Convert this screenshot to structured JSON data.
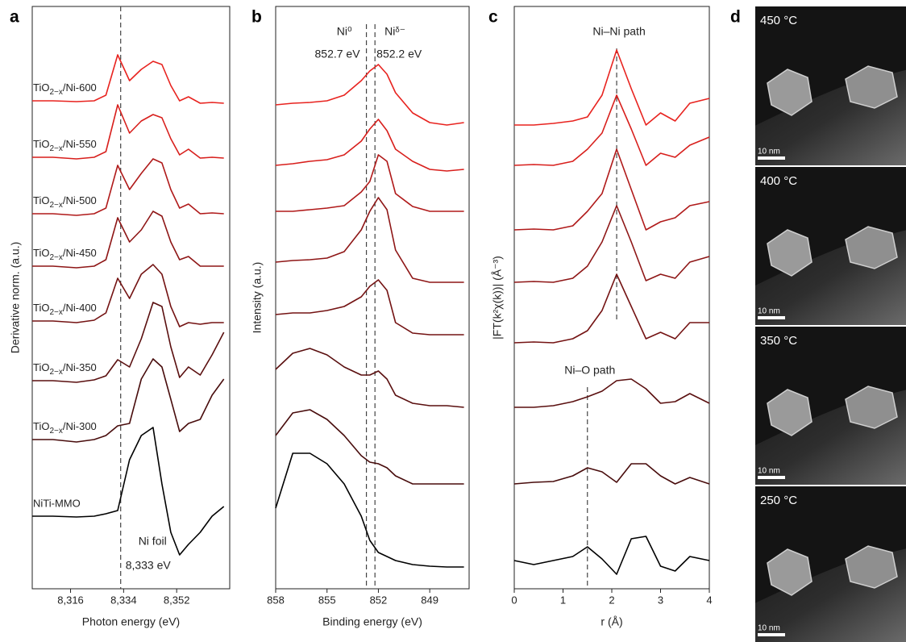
{
  "panel_labels": [
    "a",
    "b",
    "c",
    "d"
  ],
  "chart_data": [
    {
      "type": "line",
      "x_label": "Photon energy (eV)",
      "y_label": "Derivative norm. (a.u.)",
      "x": [
        8303,
        8310,
        8318,
        8324,
        8328,
        8332,
        8336,
        8340,
        8344,
        8347,
        8350,
        8353,
        8356,
        8360,
        8364,
        8368
      ],
      "xlim": [
        8303,
        8370
      ],
      "ylim": [
        0,
        722
      ],
      "xticks": [
        {
          "value": 8316,
          "label": "8,316"
        },
        {
          "value": 8334,
          "label": "8,334"
        },
        {
          "value": 8352,
          "label": "8,352"
        }
      ],
      "vlines": [
        {
          "value": 8333,
          "label": "8,333 eV"
        }
      ],
      "annotations": [
        "Ni foil"
      ],
      "series": [
        {
          "name": "TiO2−x/Ni-600",
          "color": "#e8231f",
          "values": [
            605,
            605,
            604,
            605,
            612,
            662,
            630,
            644,
            654,
            650,
            624,
            605,
            610,
            602,
            603,
            602
          ]
        },
        {
          "name": "TiO2−x/Ni-550",
          "color": "#d81f1c",
          "values": [
            535,
            535,
            533,
            535,
            542,
            600,
            565,
            580,
            588,
            584,
            558,
            538,
            545,
            534,
            535,
            534
          ]
        },
        {
          "name": "TiO2−x/Ni-500",
          "color": "#b01a1a",
          "values": [
            465,
            465,
            463,
            465,
            472,
            525,
            495,
            515,
            533,
            528,
            495,
            472,
            477,
            465,
            466,
            465
          ]
        },
        {
          "name": "TiO2−x/Ni-450",
          "color": "#8e1616",
          "values": [
            400,
            400,
            398,
            400,
            408,
            460,
            430,
            445,
            468,
            462,
            430,
            408,
            412,
            400,
            400,
            400
          ]
        },
        {
          "name": "TiO2−x/Ni-400",
          "color": "#741313",
          "values": [
            332,
            332,
            330,
            333,
            342,
            385,
            360,
            390,
            402,
            390,
            350,
            325,
            330,
            328,
            330,
            330
          ]
        },
        {
          "name": "TiO2−x/Ni-350",
          "color": "#5a0f0f",
          "values": [
            258,
            258,
            256,
            259,
            264,
            284,
            275,
            310,
            355,
            350,
            300,
            262,
            275,
            265,
            290,
            318
          ]
        },
        {
          "name": "TiO2−x/Ni-300",
          "color": "#480c0c",
          "values": [
            185,
            185,
            182,
            185,
            190,
            202,
            205,
            260,
            285,
            275,
            235,
            195,
            205,
            210,
            240,
            260
          ]
        },
        {
          "name": "NiTi-MMO",
          "color": "#000000",
          "values": [
            90,
            90,
            89,
            90,
            93,
            97,
            160,
            190,
            200,
            130,
            70,
            42,
            55,
            70,
            90,
            102
          ]
        }
      ]
    },
    {
      "type": "line",
      "x_label": "Binding energy (eV)",
      "y_label": "Intensity (a.u.)",
      "x": [
        858,
        857,
        856,
        855,
        854,
        853,
        852.5,
        852,
        851.5,
        851,
        850,
        849,
        848,
        847
      ],
      "xlim": [
        858,
        846.7
      ],
      "ylim": [
        0,
        722
      ],
      "xticks": [
        858,
        855,
        852,
        849
      ],
      "vlines": [
        {
          "value": 852.7,
          "label": "852.7 eV",
          "species": "Ni⁰"
        },
        {
          "value": 852.2,
          "label": "852.2 eV",
          "species": "Niᵟ⁻"
        }
      ],
      "series": [
        {
          "color": "#e8231f",
          "values": [
            600,
            602,
            603,
            605,
            612,
            630,
            642,
            650,
            638,
            615,
            590,
            578,
            575,
            578
          ]
        },
        {
          "color": "#d81f1c",
          "values": [
            525,
            527,
            530,
            532,
            538,
            555,
            570,
            582,
            568,
            545,
            530,
            520,
            518,
            520
          ]
        },
        {
          "color": "#b01a1a",
          "values": [
            468,
            468,
            470,
            472,
            475,
            492,
            505,
            538,
            530,
            490,
            474,
            468,
            468,
            468
          ]
        },
        {
          "color": "#8e1616",
          "values": [
            405,
            407,
            408,
            410,
            418,
            445,
            468,
            485,
            470,
            420,
            385,
            380,
            380,
            380
          ]
        },
        {
          "color": "#741313",
          "values": [
            340,
            342,
            342,
            345,
            350,
            362,
            375,
            383,
            370,
            330,
            317,
            315,
            315,
            315
          ]
        },
        {
          "color": "#5a0f0f",
          "values": [
            272,
            292,
            298,
            290,
            275,
            265,
            265,
            270,
            260,
            240,
            230,
            227,
            227,
            225
          ]
        },
        {
          "color": "#480c0c",
          "values": [
            190,
            218,
            222,
            210,
            190,
            165,
            157,
            155,
            150,
            140,
            130,
            130,
            130,
            130
          ]
        },
        {
          "color": "#000000",
          "values": [
            100,
            168,
            168,
            155,
            130,
            90,
            60,
            45,
            40,
            35,
            30,
            28,
            27,
            27
          ]
        }
      ]
    },
    {
      "type": "line",
      "x_label": "r (Å)",
      "y_label": "|FT(k²χ(k))| (Å⁻³)",
      "x": [
        0,
        0.4,
        0.8,
        1.2,
        1.5,
        1.8,
        2.1,
        2.4,
        2.7,
        3.0,
        3.3,
        3.6,
        4.0
      ],
      "xlim": [
        0,
        4
      ],
      "ylim": [
        0,
        722
      ],
      "xticks": [
        0,
        1,
        2,
        3,
        4
      ],
      "vlines": [
        {
          "value": 2.1,
          "label": "Ni–Ni path",
          "span": [
            330,
            670
          ]
        },
        {
          "value": 1.5,
          "label": "Ni–O path",
          "span": [
            0,
            250
          ]
        }
      ],
      "series": [
        {
          "color": "#e8231f",
          "values": [
            575,
            575,
            577,
            580,
            585,
            612,
            668,
            620,
            575,
            590,
            580,
            602,
            608
          ]
        },
        {
          "color": "#d81f1c",
          "values": [
            525,
            526,
            525,
            530,
            545,
            565,
            612,
            570,
            525,
            540,
            535,
            550,
            560
          ]
        },
        {
          "color": "#b01a1a",
          "values": [
            445,
            446,
            445,
            450,
            468,
            490,
            545,
            495,
            445,
            455,
            460,
            475,
            480
          ]
        },
        {
          "color": "#8e1616",
          "values": [
            380,
            381,
            380,
            385,
            400,
            430,
            475,
            430,
            382,
            390,
            385,
            405,
            412
          ]
        },
        {
          "color": "#741313",
          "values": [
            305,
            306,
            305,
            310,
            320,
            345,
            390,
            350,
            310,
            318,
            310,
            330,
            330
          ]
        },
        {
          "color": "#5a0f0f",
          "values": [
            225,
            225,
            227,
            232,
            238,
            245,
            258,
            260,
            248,
            230,
            232,
            242,
            230
          ]
        },
        {
          "color": "#480c0c",
          "values": [
            130,
            132,
            133,
            140,
            150,
            145,
            132,
            155,
            155,
            140,
            130,
            138,
            130
          ]
        },
        {
          "color": "#000000",
          "values": [
            35,
            30,
            35,
            40,
            52,
            37,
            18,
            62,
            65,
            28,
            22,
            40,
            35
          ]
        }
      ]
    }
  ],
  "micrographs": [
    {
      "label": "450 °C",
      "scale": "10 nm"
    },
    {
      "label": "400 °C",
      "scale": "10 nm"
    },
    {
      "label": "350 °C",
      "scale": "10 nm"
    },
    {
      "label": "250 °C",
      "scale": "10 nm"
    }
  ]
}
